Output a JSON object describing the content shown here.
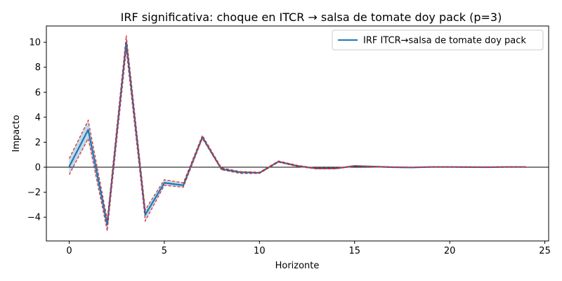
{
  "chart_data": {
    "type": "line",
    "title": "IRF significativa: choque en ITCR → salsa de tomate doy pack (p=3)",
    "xlabel": "Horizonte",
    "ylabel": "Impacto",
    "xlim": [
      -1.2,
      25.2
    ],
    "ylim": [
      -5.9,
      11.3
    ],
    "xticks": [
      0,
      5,
      10,
      15,
      20,
      25
    ],
    "yticks": [
      -4,
      -2,
      0,
      2,
      4,
      6,
      8,
      10
    ],
    "x": [
      0,
      1,
      2,
      3,
      4,
      5,
      6,
      7,
      8,
      9,
      10,
      11,
      12,
      13,
      14,
      15,
      16,
      17,
      18,
      19,
      20,
      21,
      22,
      23,
      24
    ],
    "series": [
      {
        "name": "IRF ITCR→salsa de tomate doy pack",
        "role": "irf",
        "color": "#1f77b4",
        "values": [
          0.05,
          3.0,
          -4.6,
          10.0,
          -3.8,
          -1.25,
          -1.45,
          2.4,
          -0.15,
          -0.4,
          -0.45,
          0.45,
          0.1,
          -0.1,
          -0.1,
          0.1,
          0.05,
          0.0,
          -0.02,
          0.02,
          0.02,
          0.01,
          0.0,
          0.02,
          0.02
        ]
      },
      {
        "role": "upper",
        "color": "#d62728",
        "values": [
          0.7,
          3.75,
          -4.2,
          10.55,
          -3.4,
          -1.0,
          -1.25,
          2.55,
          -0.05,
          -0.35,
          -0.4,
          0.5,
          0.15,
          -0.07,
          -0.07,
          0.12,
          0.07,
          0.02,
          -0.01,
          0.04,
          0.04,
          0.03,
          0.02,
          0.04,
          0.04
        ]
      },
      {
        "role": "lower",
        "color": "#d62728",
        "values": [
          -0.6,
          2.3,
          -5.1,
          9.4,
          -4.3,
          -1.45,
          -1.6,
          2.3,
          -0.2,
          -0.5,
          -0.5,
          0.4,
          0.05,
          -0.13,
          -0.13,
          0.08,
          0.03,
          -0.02,
          -0.03,
          0.0,
          0.0,
          -0.01,
          -0.02,
          0.0,
          0.0
        ]
      }
    ],
    "zero_line": true,
    "grid": false,
    "legend": {
      "position": "top-right",
      "entries": [
        "IRF ITCR→salsa de tomate doy pack"
      ]
    }
  }
}
